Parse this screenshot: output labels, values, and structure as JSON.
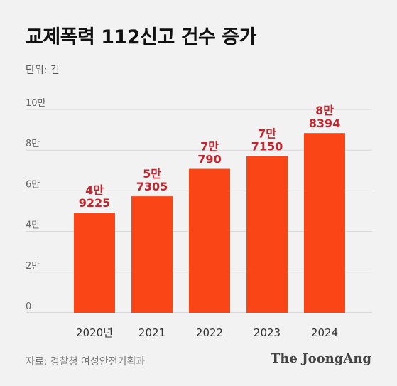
{
  "header": {
    "title": "교제폭력 112신고 건수 증가",
    "unit_label": "단위: 건"
  },
  "footer": {
    "source": "자료: 경찰청 여성안전기획과",
    "brand": "The JoongAng"
  },
  "colors": {
    "bar": "#fa4616",
    "label": "#c0262f",
    "grid": "#d6d6d6",
    "axis_text": "#666666",
    "background": "#f2f2f2"
  },
  "chart_data": {
    "type": "bar",
    "categories": [
      "2020년",
      "2021",
      "2022",
      "2023",
      "2024"
    ],
    "values": [
      49225,
      57305,
      70790,
      77150,
      88394
    ],
    "data_labels": [
      [
        "4만",
        "9225"
      ],
      [
        "5만",
        "7305"
      ],
      [
        "7만",
        "790"
      ],
      [
        "7만",
        "7150"
      ],
      [
        "8만",
        "8394"
      ]
    ],
    "y_ticks": [
      0,
      20000,
      40000,
      60000,
      80000,
      100000
    ],
    "y_tick_labels": [
      "0",
      "2만",
      "4만",
      "6만",
      "8만",
      "10만"
    ],
    "ylim": [
      0,
      100000
    ],
    "grid": true,
    "legend": "none"
  }
}
